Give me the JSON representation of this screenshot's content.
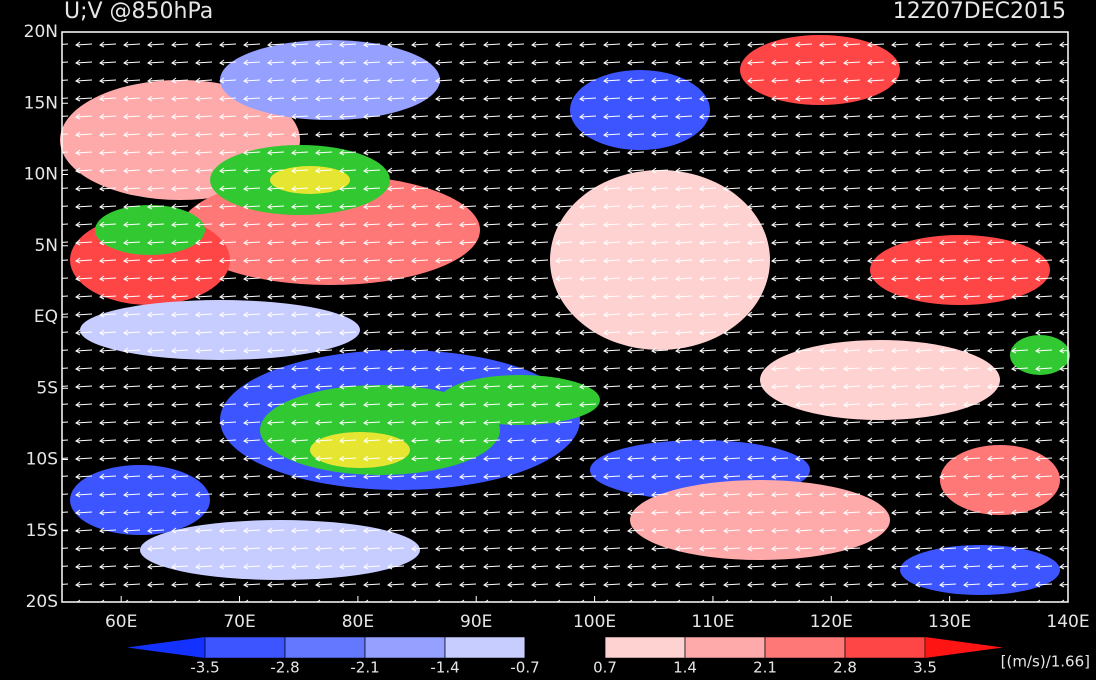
{
  "header": {
    "title": "U;V @850hPa",
    "time": "12Z07DEC2015"
  },
  "map": {
    "lat_labels": [
      "20N",
      "15N",
      "10N",
      "5N",
      "EQ",
      "5S",
      "10S",
      "15S",
      "20S"
    ],
    "lon_labels": [
      "60E",
      "70E",
      "80E",
      "90E",
      "100E",
      "110E",
      "120E",
      "130E",
      "140E"
    ]
  },
  "colorbar": {
    "levels": [
      -3.5,
      -2.8,
      -2.1,
      -1.4,
      -0.7,
      0.7,
      1.4,
      2.1,
      2.8,
      3.5
    ],
    "colors": [
      "#1432ff",
      "#3c55ff",
      "#6478ff",
      "#96a0ff",
      "#c8cdff",
      "#000000",
      "#ffd2d2",
      "#ffaaaa",
      "#ff7878",
      "#ff4646",
      "#ff1414"
    ],
    "unit": "[(m/s)/1.66]"
  }
}
